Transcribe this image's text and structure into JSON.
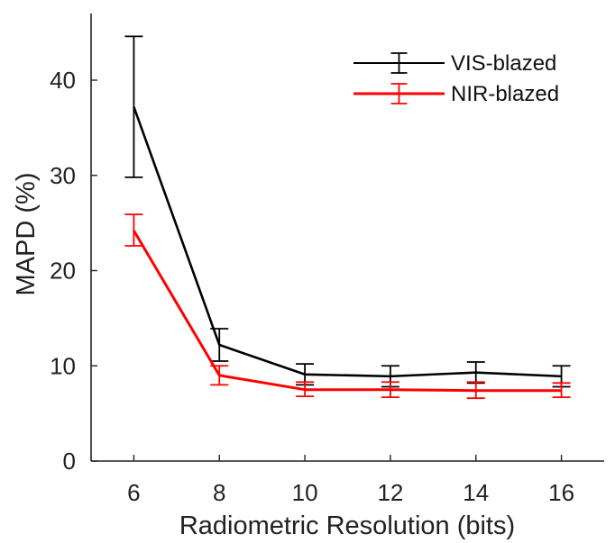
{
  "chart_data": {
    "type": "line",
    "title": "",
    "xlabel": "Radiometric Resolution (bits)",
    "ylabel": "MAPD (%)",
    "x": [
      6,
      8,
      10,
      12,
      14,
      16
    ],
    "xlim": [
      5,
      17
    ],
    "ylim": [
      0,
      47
    ],
    "xticks": [
      "6",
      "8",
      "10",
      "12",
      "14",
      "16"
    ],
    "yticks": [
      "0",
      "10",
      "20",
      "30",
      "40"
    ],
    "grid": false,
    "legend_position": "top-right",
    "series": [
      {
        "name": "VIS-blazed",
        "color": "#000000",
        "values": [
          37.2,
          12.2,
          9.1,
          8.9,
          9.3,
          8.9
        ],
        "err_low": [
          29.8,
          10.5,
          8.0,
          7.8,
          8.2,
          7.8
        ],
        "err_high": [
          44.6,
          13.9,
          10.2,
          10.0,
          10.4,
          10.0
        ]
      },
      {
        "name": "NIR-blazed",
        "color": "#ff0000",
        "values": [
          24.2,
          9.0,
          7.5,
          7.5,
          7.4,
          7.4
        ],
        "err_low": [
          22.6,
          8.0,
          6.8,
          6.7,
          6.6,
          6.7
        ],
        "err_high": [
          25.9,
          10.0,
          8.3,
          8.3,
          8.3,
          8.2
        ]
      }
    ]
  }
}
